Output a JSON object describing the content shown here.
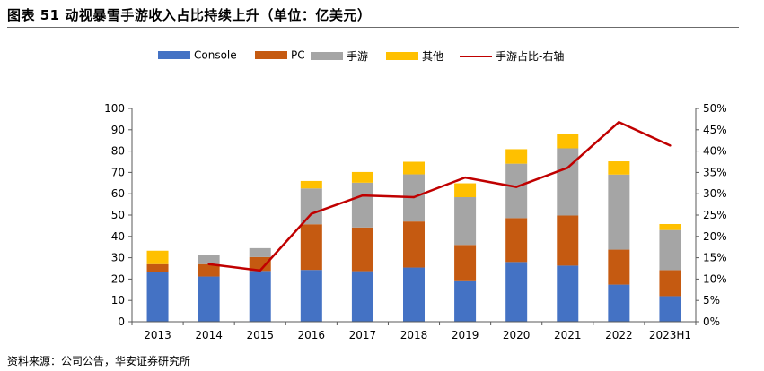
{
  "header": {
    "title": "图表 51 动视暴雪手游收入占比持续上升（单位：亿美元）"
  },
  "footer": {
    "source": "资料来源：公司公告，华安证券研究所"
  },
  "chart_data": {
    "type": "bar",
    "stacked": true,
    "categories": [
      "2013",
      "2014",
      "2015",
      "2016",
      "2017",
      "2018",
      "2019",
      "2020",
      "2021",
      "2022",
      "2023H1"
    ],
    "series": [
      {
        "name": "Console",
        "type": "bar",
        "axis": "left",
        "color": "#4472C4",
        "values": [
          23.5,
          21.2,
          23.8,
          24.3,
          23.7,
          25.4,
          19.0,
          28.0,
          26.3,
          17.4,
          12.0
        ]
      },
      {
        "name": "PC",
        "type": "bar",
        "axis": "left",
        "color": "#C55A11",
        "values": [
          3.5,
          5.8,
          6.5,
          21.4,
          20.5,
          21.6,
          17.0,
          20.6,
          23.5,
          16.4,
          12.2
        ]
      },
      {
        "name": "手游",
        "type": "bar",
        "axis": "left",
        "color": "#A5A5A5",
        "values": [
          0,
          4.2,
          4.2,
          16.8,
          21.0,
          22.1,
          22.4,
          25.5,
          31.5,
          35.2,
          18.8
        ]
      },
      {
        "name": "其他",
        "type": "bar",
        "axis": "left",
        "color": "#FFC000",
        "values": [
          6.3,
          0,
          0,
          3.5,
          5.0,
          5.9,
          6.5,
          6.8,
          6.6,
          6.2,
          2.8
        ]
      },
      {
        "name": "手游占比-右轴",
        "type": "line",
        "axis": "right",
        "color": "#C00000",
        "values": [
          null,
          13.5,
          12.0,
          25.3,
          29.6,
          29.2,
          33.8,
          31.6,
          36.1,
          46.8,
          41.3
        ]
      }
    ],
    "left_axis": {
      "min": 0,
      "max": 100,
      "step": 10,
      "ticks": [
        "0",
        "10",
        "20",
        "30",
        "40",
        "50",
        "60",
        "70",
        "80",
        "90",
        "100"
      ]
    },
    "right_axis": {
      "min": 0,
      "max": 50,
      "step": 5,
      "ticks": [
        "0%",
        "5%",
        "10%",
        "15%",
        "20%",
        "25%",
        "30%",
        "35%",
        "40%",
        "45%",
        "50%"
      ]
    },
    "legend_position": "top",
    "grid": false
  }
}
